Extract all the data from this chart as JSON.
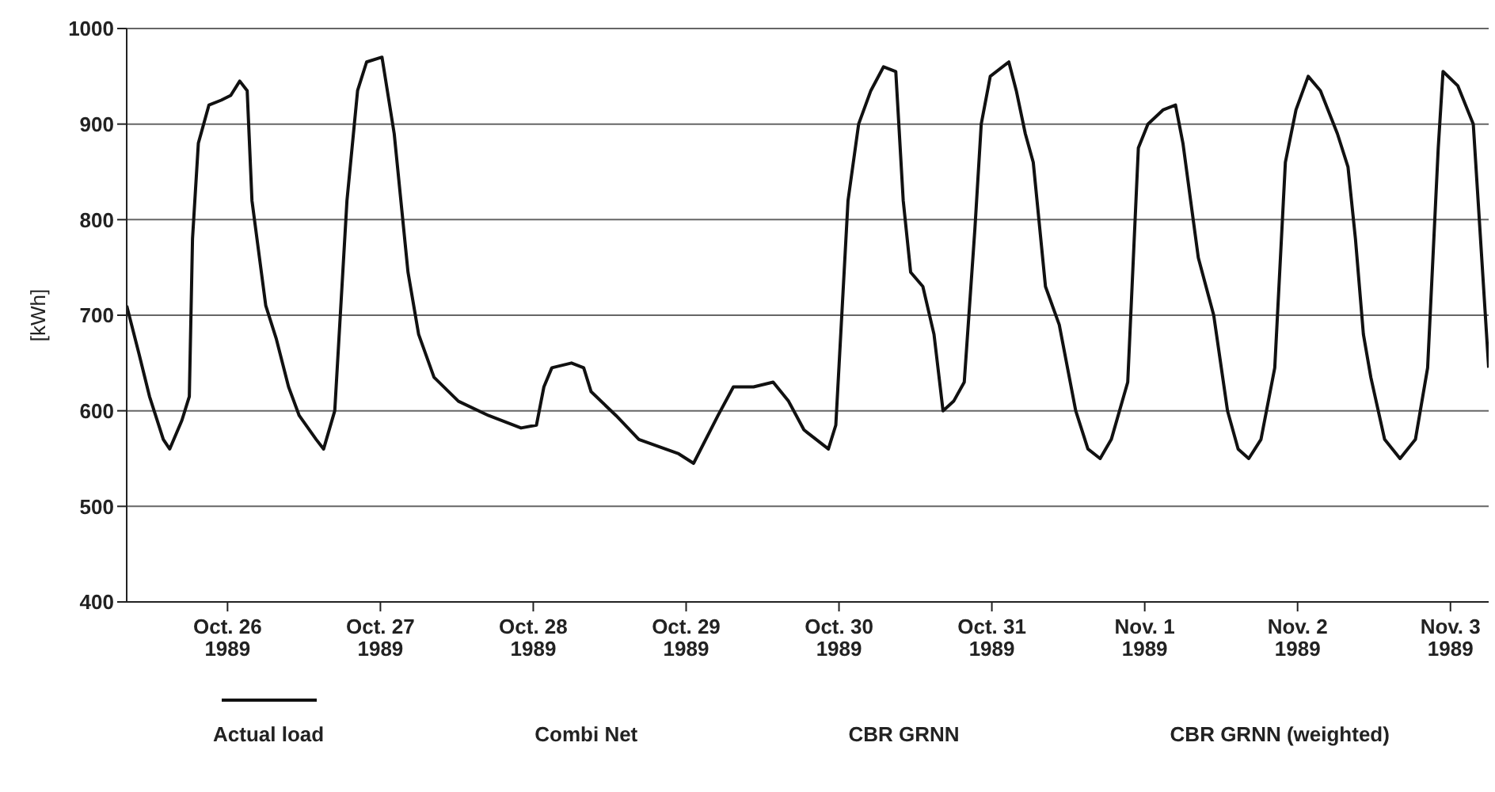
{
  "chart_data": {
    "type": "line",
    "ylabel": "[kWh]",
    "x": [
      "1989-10-25T08:10",
      "1989-10-25T10:05",
      "1989-10-25T11:45",
      "1989-10-25T13:55",
      "1989-10-25T14:55",
      "1989-10-25T16:50",
      "1989-10-25T18:00",
      "1989-10-25T18:30",
      "1989-10-25T19:25",
      "1989-10-25T21:05",
      "1989-10-25T23:00",
      "1989-10-26T00:30",
      "1989-10-26T01:55",
      "1989-10-26T03:05",
      "1989-10-26T03:50",
      "1989-10-26T06:00",
      "1989-10-26T07:40",
      "1989-10-26T09:35",
      "1989-10-26T11:15",
      "1989-10-26T13:55",
      "1989-10-26T15:05",
      "1989-10-26T16:50",
      "1989-10-26T18:45",
      "1989-10-26T20:25",
      "1989-10-26T21:50",
      "1989-10-27T00:15",
      "1989-10-27T02:10",
      "1989-10-27T04:20",
      "1989-10-27T06:00",
      "1989-10-27T08:25",
      "1989-10-27T12:15",
      "1989-10-27T17:00",
      "1989-10-27T22:05",
      "1989-10-28T00:30",
      "1989-10-28T01:40",
      "1989-10-28T02:55",
      "1989-10-28T06:00",
      "1989-10-28T07:55",
      "1989-10-28T09:05",
      "1989-10-28T13:00",
      "1989-10-28T16:35",
      "1989-10-28T22:50",
      "1989-10-29T01:10",
      "1989-10-29T05:00",
      "1989-10-29T07:25",
      "1989-10-29T10:35",
      "1989-10-29T13:40",
      "1989-10-29T16:05",
      "1989-10-29T18:30",
      "1989-10-29T22:20",
      "1989-10-29T23:30",
      "1989-10-30T01:25",
      "1989-10-30T03:05",
      "1989-10-30T05:00",
      "1989-10-30T07:00",
      "1989-10-30T08:55",
      "1989-10-30T10:05",
      "1989-10-30T11:15",
      "1989-10-30T13:10",
      "1989-10-30T14:55",
      "1989-10-30T16:20",
      "1989-10-30T18:00",
      "1989-10-30T19:40",
      "1989-10-30T21:20",
      "1989-10-30T22:20",
      "1989-10-30T23:45",
      "1989-10-31T02:40",
      "1989-10-31T03:50",
      "1989-10-31T05:15",
      "1989-10-31T06:30",
      "1989-10-31T08:25",
      "1989-10-31T10:35",
      "1989-10-31T13:10",
      "1989-10-31T15:05",
      "1989-10-31T17:00",
      "1989-10-31T18:45",
      "1989-10-31T21:20",
      "1989-10-31T23:00",
      "1989-11-01T00:30",
      "1989-11-01T02:55",
      "1989-11-01T04:50",
      "1989-11-01T06:00",
      "1989-11-01T08:25",
      "1989-11-01T10:50",
      "1989-11-01T13:00",
      "1989-11-01T14:40",
      "1989-11-01T16:20",
      "1989-11-01T18:15",
      "1989-11-01T20:25",
      "1989-11-01T22:05",
      "1989-11-01T23:45",
      "1989-11-02T01:40",
      "1989-11-02T03:35",
      "1989-11-02T06:15",
      "1989-11-02T07:55",
      "1989-11-02T09:05",
      "1989-11-02T10:20",
      "1989-11-02T11:30",
      "1989-11-02T13:40",
      "1989-11-02T16:05",
      "1989-11-02T18:30",
      "1989-11-02T20:25",
      "1989-11-02T22:05",
      "1989-11-02T22:50",
      "1989-11-03T01:10",
      "1989-11-03T03:35",
      "1989-11-03T06:00"
    ],
    "series": [
      {
        "name": "Actual load",
        "color": "#111111",
        "values": [
          710,
          660,
          615,
          570,
          560,
          590,
          615,
          780,
          880,
          920,
          925,
          930,
          945,
          935,
          820,
          710,
          675,
          625,
          595,
          570,
          560,
          600,
          820,
          935,
          965,
          970,
          890,
          745,
          680,
          635,
          610,
          595,
          582,
          585,
          625,
          645,
          650,
          645,
          620,
          595,
          570,
          555,
          545,
          595,
          625,
          625,
          630,
          610,
          580,
          560,
          585,
          820,
          900,
          935,
          960,
          955,
          820,
          745,
          730,
          680,
          600,
          610,
          630,
          790,
          900,
          950,
          965,
          935,
          890,
          860,
          730,
          690,
          600,
          560,
          550,
          570,
          630,
          875,
          900,
          915,
          920,
          880,
          760,
          700,
          600,
          560,
          550,
          570,
          645,
          860,
          915,
          950,
          935,
          890,
          855,
          780,
          680,
          635,
          570,
          550,
          570,
          645,
          875,
          955,
          940,
          900,
          645
        ]
      }
    ],
    "xlim": [
      "1989-10-25T08:10",
      "1989-11-03T06:00"
    ],
    "xticks": [
      {
        "value": "1989-10-26",
        "label": "Oct. 26\n1989"
      },
      {
        "value": "1989-10-27",
        "label": "Oct. 27\n1989"
      },
      {
        "value": "1989-10-28",
        "label": "Oct. 28\n1989"
      },
      {
        "value": "1989-10-29",
        "label": "Oct. 29\n1989"
      },
      {
        "value": "1989-10-30",
        "label": "Oct. 30\n1989"
      },
      {
        "value": "1989-10-31",
        "label": "Oct. 31\n1989"
      },
      {
        "value": "1989-11-01",
        "label": "Nov. 1\n1989"
      },
      {
        "value": "1989-11-02",
        "label": "Nov. 2\n1989"
      },
      {
        "value": "1989-11-03",
        "label": "Nov. 3\n1989"
      }
    ],
    "ylim": [
      400,
      1000
    ],
    "yticks": [
      400,
      500,
      600,
      700,
      800,
      900,
      1000
    ],
    "grid": "y",
    "legend": "bottom",
    "marker": "none",
    "line_style": "solid",
    "annotations": [
      "Combi Net",
      "CBR GRNN",
      "CBR GRNN (weighted)"
    ]
  }
}
